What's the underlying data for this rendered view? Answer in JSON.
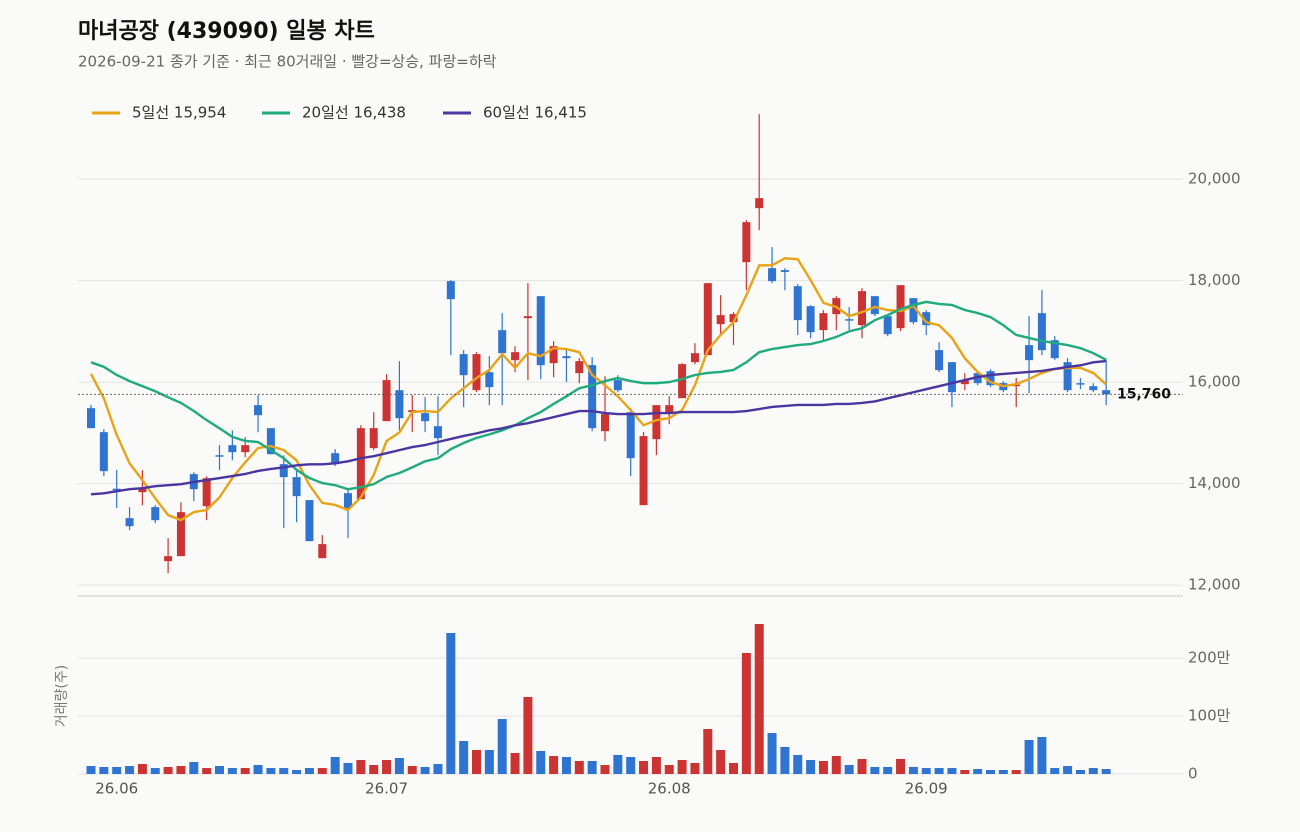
{
  "chart_data": [
    {
      "type": "candlestick",
      "title": "마녀공장 (439090) 일봉 차트",
      "subtitle": "2026-09-21 종가 기준 · 최근 80거래일 · 빨강=상승, 파랑=하락",
      "categories": [
        null,
        null,
        "26.06",
        null,
        null,
        null,
        null,
        null,
        null,
        null,
        null,
        null,
        null,
        null,
        null,
        null,
        null,
        null,
        null,
        null,
        null,
        null,
        null,
        "26.07",
        null,
        null,
        null,
        null,
        null,
        null,
        null,
        null,
        null,
        null,
        null,
        null,
        null,
        null,
        null,
        null,
        null,
        null,
        null,
        null,
        null,
        "26.08",
        null,
        null,
        null,
        null,
        null,
        null,
        null,
        null,
        null,
        null,
        null,
        null,
        null,
        null,
        null,
        null,
        null,
        null,
        null,
        "26.09",
        null,
        null,
        null,
        null,
        null,
        null,
        null,
        null,
        null,
        null,
        null,
        null,
        null,
        null
      ],
      "open": [
        15487,
        15014,
        13900,
        13320,
        13832,
        13537,
        12473,
        12571,
        14187,
        13556,
        14560,
        14758,
        14620,
        15546,
        15093,
        14384,
        14128,
        13675,
        12532,
        14600,
        13812,
        13694,
        14700,
        15231,
        15841,
        15408,
        15389,
        15132,
        17989,
        16551,
        15841,
        16196,
        17024,
        16432,
        17260,
        17693,
        16373,
        16511,
        16177,
        16334,
        15034,
        16039,
        15408,
        13576,
        14876,
        15389,
        15684,
        16393,
        16531,
        17142,
        17181,
        18363,
        19427,
        18245,
        18206,
        17890,
        17496,
        17024,
        17339,
        17240,
        17122,
        17693,
        17299,
        17063,
        17654,
        17378,
        16630,
        16393,
        15960,
        16177,
        16216,
        15980,
        15930,
        16728,
        17358,
        16826,
        16393,
        15980,
        15920,
        15841
      ],
      "high": [
        15550,
        15073,
        14270,
        13537,
        14265,
        13576,
        12926,
        13635,
        14226,
        14147,
        14758,
        15050,
        14916,
        15743,
        15093,
        14560,
        14266,
        13675,
        12985,
        14680,
        13911,
        15152,
        15408,
        16157,
        16413,
        15743,
        15704,
        15723,
        18009,
        16630,
        16590,
        16511,
        17358,
        16708,
        17949,
        17693,
        16807,
        16630,
        16472,
        16492,
        16117,
        16137,
        15487,
        15014,
        15546,
        15723,
        16373,
        16767,
        17949,
        17713,
        17378,
        19190,
        21279,
        18659,
        18245,
        17930,
        17516,
        17418,
        17693,
        17477,
        17851,
        17693,
        17299,
        17910,
        17654,
        17418,
        16787,
        16393,
        16177,
        16216,
        16255,
        16019,
        16078,
        17299,
        17811,
        16905,
        16472,
        16078,
        15980,
        16433
      ],
      "low": [
        15090,
        14147,
        13520,
        13083,
        13576,
        13221,
        12236,
        12571,
        13655,
        13280,
        14265,
        14460,
        14520,
        15014,
        14580,
        13123,
        13241,
        12867,
        12532,
        14344,
        12926,
        13694,
        14660,
        15231,
        15054,
        15014,
        15014,
        14561,
        16531,
        15507,
        15802,
        15546,
        15546,
        16196,
        16039,
        16058,
        16098,
        16000,
        15980,
        15034,
        14837,
        15802,
        14147,
        13576,
        14561,
        15172,
        15684,
        16354,
        16531,
        16925,
        16728,
        17811,
        18994,
        17949,
        17811,
        16925,
        16866,
        16826,
        17024,
        17024,
        16866,
        17299,
        16905,
        17004,
        17142,
        16925,
        16196,
        15507,
        15841,
        15940,
        15900,
        15802,
        15507,
        15782,
        16531,
        16433,
        15802,
        15861,
        15802,
        15546
      ],
      "close": [
        15093,
        14246,
        13870,
        13162,
        13910,
        13280,
        12571,
        13438,
        13891,
        14108,
        14530,
        14620,
        14758,
        15349,
        14580,
        14128,
        13753,
        12867,
        12808,
        14384,
        13517,
        15093,
        15093,
        16039,
        15290,
        15448,
        15231,
        14896,
        17634,
        16137,
        16551,
        15900,
        16570,
        16590,
        17299,
        16334,
        16708,
        16472,
        16413,
        15093,
        15369,
        15841,
        14502,
        14936,
        15546,
        15546,
        16354,
        16570,
        17949,
        17319,
        17339,
        19151,
        19624,
        17989,
        18170,
        17221,
        16984,
        17358,
        17654,
        17220,
        17792,
        17339,
        16945,
        17910,
        17181,
        17122,
        16236,
        15802,
        16039,
        15980,
        15940,
        15841,
        15950,
        16433,
        16630,
        16472,
        15841,
        15960,
        15841,
        15760
      ],
      "last_price_label": "15,760",
      "up_color": "#cc3333",
      "down_color": "#2f74d0",
      "series": [
        {
          "name": "5일선 15,954",
          "color": "#e8a317",
          "values": [
            16160,
            15680,
            14960,
            14400,
            14070,
            13710,
            13380,
            13280,
            13440,
            13480,
            13730,
            14110,
            14420,
            14700,
            14740,
            14660,
            14460,
            13970,
            13620,
            13580,
            13480,
            13730,
            14170,
            14840,
            15010,
            15410,
            15430,
            15410,
            15680,
            15880,
            16080,
            16240,
            16550,
            16280,
            16570,
            16510,
            16670,
            16650,
            16590,
            16140,
            15940,
            15720,
            15450,
            15150,
            15250,
            15290,
            15450,
            15940,
            16630,
            16930,
            17180,
            17710,
            18300,
            18300,
            18440,
            18420,
            18010,
            17560,
            17480,
            17300,
            17380,
            17480,
            17420,
            17400,
            17500,
            17180,
            17120,
            16870,
            16470,
            16200,
            16000,
            15920,
            15960,
            16060,
            16180,
            16260,
            16280,
            16280,
            16180,
            15954
          ]
        },
        {
          "name": "20일선 16,438",
          "color": "#1fab7f",
          "values": [
            16390,
            16300,
            16140,
            16020,
            15920,
            15820,
            15700,
            15590,
            15430,
            15250,
            15090,
            14920,
            14840,
            14820,
            14660,
            14500,
            14270,
            14110,
            14010,
            13970,
            13890,
            13930,
            13990,
            14130,
            14210,
            14320,
            14440,
            14500,
            14680,
            14800,
            14900,
            14970,
            15050,
            15150,
            15290,
            15410,
            15570,
            15720,
            15880,
            15940,
            16020,
            16080,
            16020,
            15980,
            15980,
            16000,
            16060,
            16140,
            16180,
            16200,
            16240,
            16390,
            16590,
            16650,
            16690,
            16730,
            16750,
            16810,
            16890,
            17000,
            17060,
            17220,
            17320,
            17440,
            17520,
            17580,
            17540,
            17520,
            17420,
            17360,
            17280,
            17120,
            16930,
            16870,
            16810,
            16770,
            16730,
            16670,
            16570,
            16438
          ]
        },
        {
          "name": "60일선 16,415",
          "color": "#4b35a0",
          "values": [
            13790,
            13810,
            13850,
            13890,
            13910,
            13950,
            13970,
            13990,
            14030,
            14070,
            14110,
            14150,
            14190,
            14250,
            14290,
            14320,
            14360,
            14380,
            14380,
            14400,
            14440,
            14500,
            14540,
            14600,
            14660,
            14720,
            14760,
            14820,
            14880,
            14940,
            14990,
            15050,
            15090,
            15150,
            15190,
            15250,
            15310,
            15370,
            15430,
            15430,
            15390,
            15370,
            15370,
            15370,
            15390,
            15390,
            15410,
            15410,
            15410,
            15410,
            15410,
            15430,
            15470,
            15510,
            15530,
            15550,
            15550,
            15550,
            15570,
            15570,
            15590,
            15620,
            15680,
            15740,
            15800,
            15860,
            15920,
            15980,
            16040,
            16100,
            16140,
            16160,
            16180,
            16200,
            16220,
            16260,
            16300,
            16330,
            16390,
            16415
          ]
        }
      ],
      "ylim": [
        11800,
        21400
      ],
      "yticks": [
        {
          "value": 12000,
          "label": "12,000"
        },
        {
          "value": 14000,
          "label": "14,000"
        },
        {
          "value": 16000,
          "label": "16,000"
        },
        {
          "value": 18000,
          "label": "18,000"
        },
        {
          "value": 20000,
          "label": "20,000"
        }
      ],
      "grid": true
    },
    {
      "type": "bar",
      "y_label": "거래량(주)",
      "values": [
        138000,
        121000,
        121000,
        138000,
        172000,
        103000,
        121000,
        138000,
        207000,
        103000,
        138000,
        103000,
        103000,
        155000,
        103000,
        103000,
        69000,
        103000,
        103000,
        293000,
        190000,
        241000,
        155000,
        241000,
        276000,
        138000,
        121000,
        172000,
        2431000,
        569000,
        414000,
        414000,
        948000,
        362000,
        1328000,
        397000,
        310000,
        293000,
        224000,
        224000,
        155000,
        328000,
        293000,
        224000,
        293000,
        155000,
        241000,
        190000,
        776000,
        414000,
        190000,
        2086000,
        2586000,
        707000,
        466000,
        328000,
        241000,
        224000,
        310000,
        155000,
        259000,
        121000,
        121000,
        259000,
        121000,
        103000,
        103000,
        103000,
        69000,
        86000,
        69000,
        69000,
        69000,
        586000,
        638000,
        103000,
        138000,
        69000,
        103000,
        86000
      ],
      "ylim": [
        0,
        3000000
      ],
      "yticks": [
        0,
        {
          "value": 1000000,
          "label": "100만"
        },
        {
          "value": 2000000,
          "label": "200만"
        }
      ],
      "grid": true
    }
  ]
}
